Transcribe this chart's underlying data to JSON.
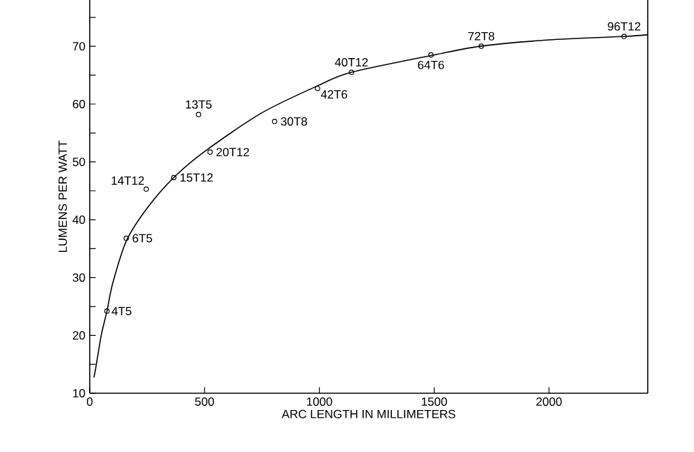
{
  "chart_data": {
    "type": "scatter",
    "xlabel": "ARC LENGTH IN MILLIMETERS",
    "ylabel": "LUMENS PER WATT",
    "xlim": [
      0,
      2430
    ],
    "ylim": [
      10,
      78
    ],
    "xticks": [
      0,
      500,
      1000,
      1500,
      2000
    ],
    "yticks": [
      10,
      {
        "value": 15,
        "label": null
      },
      20,
      {
        "value": 25,
        "label": null
      },
      30,
      {
        "value": 35,
        "label": null
      },
      40,
      {
        "value": 45,
        "label": null
      },
      50,
      {
        "value": 55,
        "label": null
      },
      60,
      {
        "value": 65,
        "label": null
      },
      70,
      {
        "value": 75,
        "label": null
      }
    ],
    "grid": false,
    "series": [
      {
        "type": "line",
        "color": "#000000",
        "marker": "none",
        "line_style": "solid",
        "x": [
          18,
          26,
          50,
          75,
          100,
          159,
          250,
          366,
          500,
          750,
          1000,
          1140,
          1500,
          1700,
          2000,
          2327,
          2430
        ],
        "values": [
          12.7,
          14.3,
          20,
          24.2,
          29,
          36.3,
          42,
          47.3,
          51.8,
          58.5,
          63.3,
          65.5,
          68.5,
          70,
          71.1,
          71.7,
          72
        ]
      },
      {
        "color": "#000000",
        "marker": "circle",
        "x": [
          75,
          159,
          246,
          366,
          474,
          524,
          805,
          992,
          1140,
          1486,
          1705,
          2327
        ],
        "values": [
          24.2,
          36.8,
          45.3,
          47.3,
          58.2,
          51.7,
          57.0,
          62.7,
          65.5,
          68.5,
          70.0,
          71.7
        ]
      }
    ],
    "annotations": [
      {
        "text": "4T5",
        "x": 75,
        "y": 24.2
      },
      {
        "text": "6T5",
        "x": 159,
        "y": 36.8
      },
      {
        "text": "14T12",
        "x": 246,
        "y": 45.3
      },
      {
        "text": "15T12",
        "x": 366,
        "y": 47.3
      },
      {
        "text": "13T5",
        "x": 474,
        "y": 58.2
      },
      {
        "text": "20T12",
        "x": 524,
        "y": 51.7
      },
      {
        "text": "30T8",
        "x": 805,
        "y": 57.0
      },
      {
        "text": "42T6",
        "x": 992,
        "y": 62.7
      },
      {
        "text": "40T12",
        "x": 1140,
        "y": 65.5
      },
      {
        "text": "64T6",
        "x": 1486,
        "y": 68.5
      },
      {
        "text": "72T8",
        "x": 1705,
        "y": 70.0
      },
      {
        "text": "96T12",
        "x": 2327,
        "y": 71.7
      }
    ]
  }
}
